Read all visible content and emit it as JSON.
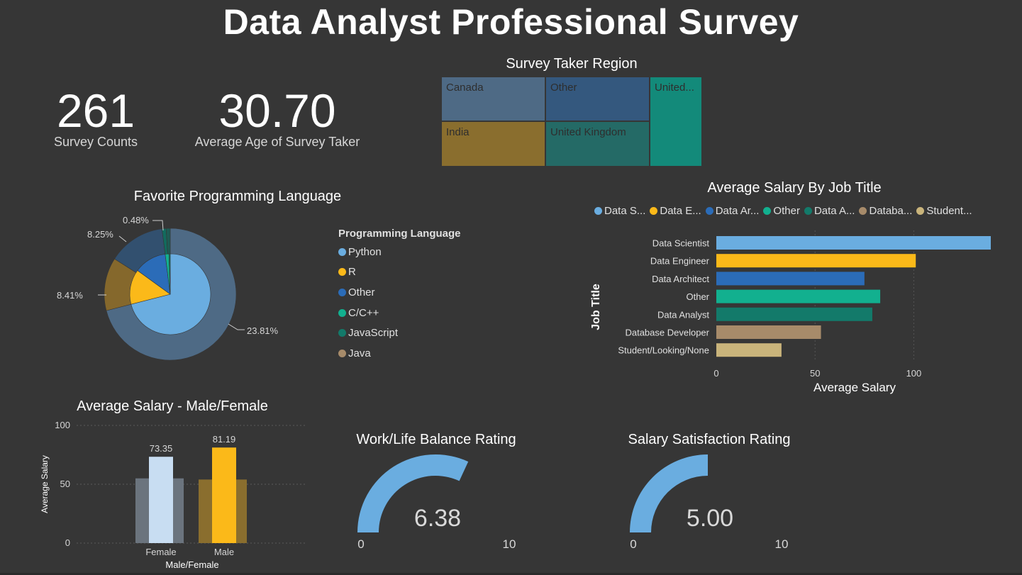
{
  "title": "Data Analyst Professional Survey",
  "kpis": [
    {
      "value": "261",
      "label": "Survey Counts"
    },
    {
      "value": "30.70",
      "label": "Average Age of Survey Taker"
    }
  ],
  "colors": {
    "background": "#363636",
    "light_blue": "#6AADE0",
    "yellow": "#FBB919",
    "blue": "#2B6CB8",
    "teal": "#12B08F",
    "dark_teal": "#137A6A",
    "tan": "#A78B6A",
    "khaki": "#C9B47B"
  },
  "chart_data": [
    {
      "type": "treemap",
      "title": "Survey Taker Region",
      "items": [
        {
          "name": "Canada",
          "color": "#4E6A85"
        },
        {
          "name": "Other",
          "color": "#34587E"
        },
        {
          "name": "United...",
          "color": "#138A7A"
        },
        {
          "name": "India",
          "color": "#8A6E2E"
        },
        {
          "name": "United Kingdom",
          "color": "#246A66"
        }
      ]
    },
    {
      "type": "pie",
      "title": "Favorite Programming Language",
      "legend_title": "Programming Language",
      "legend": [
        {
          "name": "Python",
          "color": "#6AADE0"
        },
        {
          "name": "R",
          "color": "#FBB919"
        },
        {
          "name": "Other",
          "color": "#2B6CB8"
        },
        {
          "name": "C/C++",
          "color": "#12B08F"
        },
        {
          "name": "JavaScript",
          "color": "#137A6A"
        },
        {
          "name": "Java",
          "color": "#A78B6A"
        }
      ],
      "outer_ring": [
        {
          "name": "Python",
          "value": 71,
          "color": "#4E6A85"
        },
        {
          "name": "R",
          "value": 13,
          "color": "#85682C"
        },
        {
          "name": "Other",
          "value": 14,
          "color": "#32506F"
        },
        {
          "name": "C/C++",
          "value": 1,
          "color": "#126B5E"
        },
        {
          "name": "JavaScript",
          "value": 1,
          "color": "#1E5C55"
        }
      ],
      "inner_pie": [
        {
          "name": "Python",
          "value": 71,
          "color": "#6AADE0"
        },
        {
          "name": "R",
          "value": 14,
          "color": "#FBB919"
        },
        {
          "name": "Other",
          "value": 13,
          "color": "#2B6CB8"
        },
        {
          "name": "C/C++",
          "value": 1.5,
          "color": "#12B08F"
        },
        {
          "name": "JavaScript",
          "value": 0.5,
          "color": "#137A6A"
        }
      ],
      "data_labels": [
        "23.81%",
        "8.41%",
        "8.25%",
        "0.48%"
      ]
    },
    {
      "type": "bar",
      "orientation": "horizontal",
      "title": "Average Salary By Job Title",
      "legend": [
        {
          "name": "Data S...",
          "color": "#6AADE0"
        },
        {
          "name": "Data E...",
          "color": "#FBB919"
        },
        {
          "name": "Data Ar...",
          "color": "#2B6CB8"
        },
        {
          "name": "Other",
          "color": "#12B08F"
        },
        {
          "name": "Data A...",
          "color": "#137A6A"
        },
        {
          "name": "Databa...",
          "color": "#A78B6A"
        },
        {
          "name": "Student...",
          "color": "#C9B47B"
        }
      ],
      "categories": [
        "Data Scientist",
        "Data Engineer",
        "Data Architect",
        "Other",
        "Data Analyst",
        "Database Developer",
        "Student/Looking/None"
      ],
      "values": [
        139,
        101,
        75,
        83,
        79,
        53,
        33
      ],
      "colors": [
        "#6AADE0",
        "#FBB919",
        "#2B6CB8",
        "#12B08F",
        "#137A6A",
        "#A78B6A",
        "#C9B47B"
      ],
      "xlabel": "Average Salary",
      "ylabel": "Job Title",
      "xticks": [
        "0",
        "50",
        "100"
      ],
      "xlim": [
        0,
        139
      ]
    },
    {
      "type": "bar",
      "title": "Average Salary - Male/Female",
      "categories": [
        "Female",
        "Male"
      ],
      "values": [
        73.35,
        81.19
      ],
      "value_labels": [
        "73.35",
        "81.19"
      ],
      "background_values": [
        55,
        54
      ],
      "colors": [
        "#C8DDF2",
        "#FBB919"
      ],
      "background_colors": [
        "#6B747E",
        "#8A6E2E"
      ],
      "xlabel": "Male/Female",
      "ylabel": "Average Salary",
      "yticks": [
        "100",
        "50",
        "0"
      ],
      "ylim": [
        0,
        100
      ]
    },
    {
      "type": "gauge",
      "title": "Work/Life Balance Rating",
      "value": 6.38,
      "value_label": "6.38",
      "min_label": "0",
      "max_label": "10",
      "range": [
        0,
        10
      ]
    },
    {
      "type": "gauge",
      "title": "Salary Satisfaction Rating",
      "value": 5.0,
      "value_label": "5.00",
      "min_label": "0",
      "max_label": "10",
      "range": [
        0,
        10
      ]
    }
  ]
}
